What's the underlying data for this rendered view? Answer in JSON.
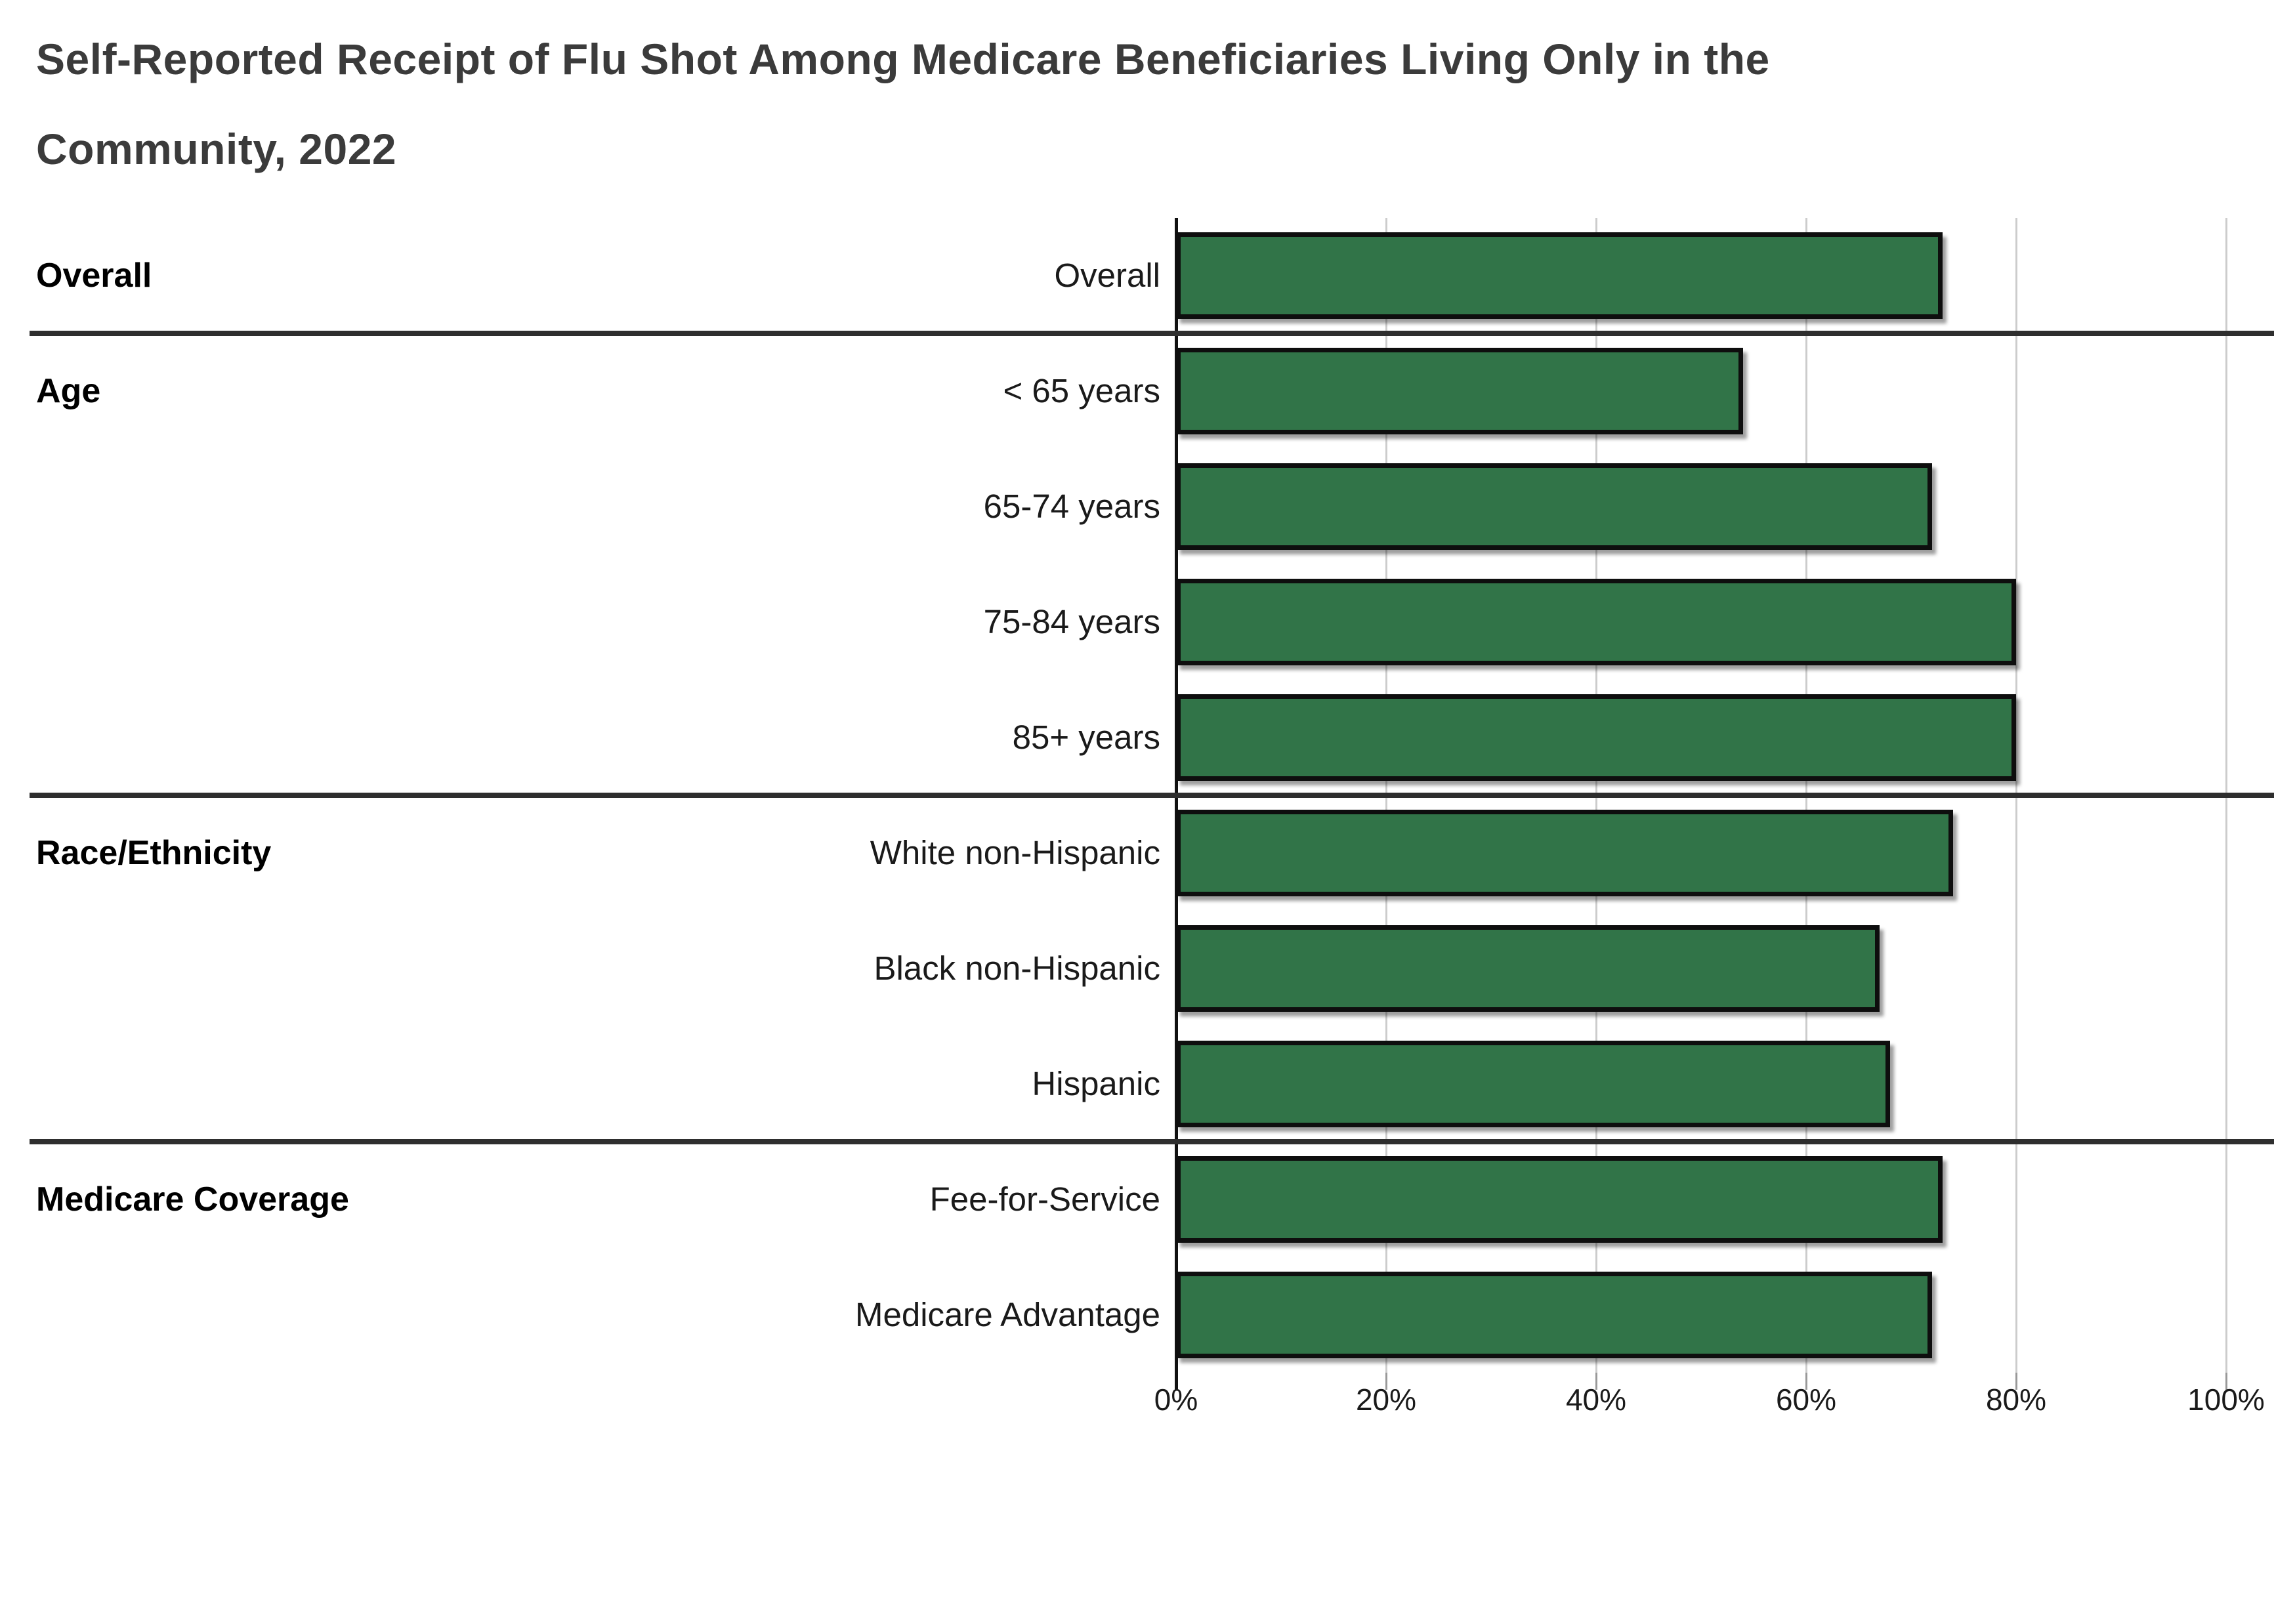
{
  "title": {
    "lines": [
      "Self-Reported Receipt of Flu Shot Among Medicare Beneficiaries Living Only in the",
      "Community, 2022"
    ]
  },
  "colors": {
    "bar_fill": "#317448",
    "bar_border": "#0e0e0e",
    "gridline": "#cccccc",
    "axis_line": "#111111",
    "divider": "#2e2e2e",
    "title_text": "#3b3b3b",
    "label_text": "#1a1a1a"
  },
  "chart_data": {
    "type": "bar",
    "orientation": "horizontal",
    "title": "Self-Reported Receipt of Flu Shot Among Medicare Beneficiaries Living Only in the Community, 2022",
    "unit": "percent",
    "xlim": [
      0,
      100
    ],
    "x_ticks": [
      0,
      20,
      40,
      60,
      80,
      100
    ],
    "x_tick_labels": [
      "0%",
      "20%",
      "40%",
      "60%",
      "80%",
      "100%"
    ],
    "grid": true,
    "legend": false,
    "groups": [
      {
        "label": "Overall",
        "rows": [
          {
            "label": "Overall",
            "value": 73
          }
        ]
      },
      {
        "label": "Age",
        "rows": [
          {
            "label": "< 65 years",
            "value": 54
          },
          {
            "label": "65-74 years",
            "value": 72
          },
          {
            "label": "75-84 years",
            "value": 80
          },
          {
            "label": "85+ years",
            "value": 80
          }
        ]
      },
      {
        "label": "Race/Ethnicity",
        "rows": [
          {
            "label": "White non-Hispanic",
            "value": 74
          },
          {
            "label": "Black non-Hispanic",
            "value": 67
          },
          {
            "label": "Hispanic",
            "value": 68
          }
        ]
      },
      {
        "label": "Medicare Coverage",
        "rows": [
          {
            "label": "Fee-for-Service",
            "value": 73
          },
          {
            "label": "Medicare Advantage",
            "value": 72
          }
        ]
      }
    ]
  }
}
